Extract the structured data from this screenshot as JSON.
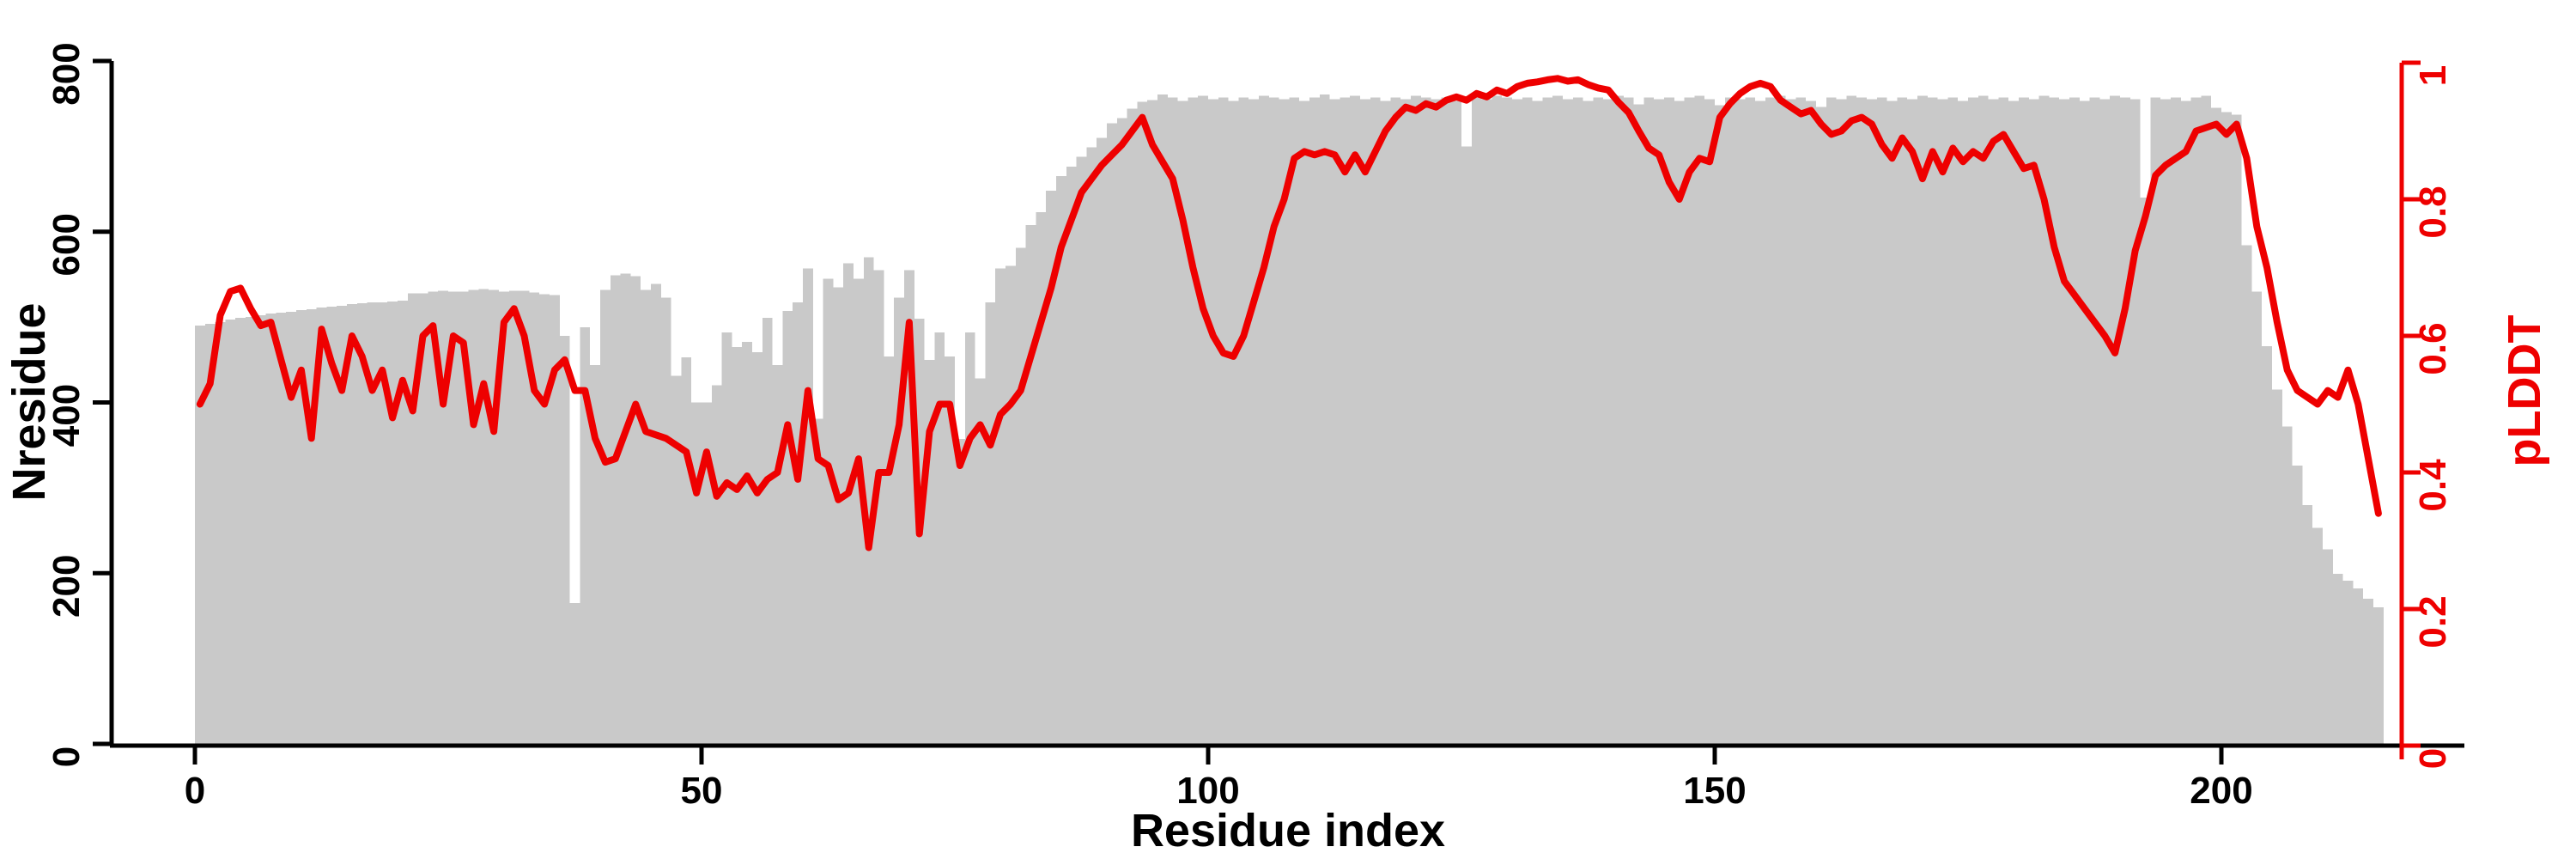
{
  "chart_data": {
    "type": "bar",
    "subtype": "dual-axis-bar-and-line",
    "title": "",
    "xlabel": "Residue index",
    "ylabel_left": "Nresidue",
    "ylabel_right": "pLDDT",
    "x_start": 0,
    "x_step": 1,
    "xlim": [
      0,
      216
    ],
    "ylim_left": [
      0,
      800
    ],
    "ylim_right": [
      0,
      1
    ],
    "grid": false,
    "legend": "none",
    "x_ticks": [
      {
        "v": 0,
        "label": "0"
      },
      {
        "v": 50,
        "label": "50"
      },
      {
        "v": 100,
        "label": "100"
      },
      {
        "v": 150,
        "label": "150"
      },
      {
        "v": 200,
        "label": "200"
      }
    ],
    "y_ticks_left": [
      {
        "v": 0,
        "label": "0"
      },
      {
        "v": 200,
        "label": "200"
      },
      {
        "v": 400,
        "label": "400"
      },
      {
        "v": 600,
        "label": "600"
      },
      {
        "v": 800,
        "label": "800"
      }
    ],
    "y_ticks_right": [
      {
        "v": 0,
        "label": "0"
      },
      {
        "v": 0.2,
        "label": "0.2"
      },
      {
        "v": 0.4,
        "label": "0.4"
      },
      {
        "v": 0.6,
        "label": "0.6"
      },
      {
        "v": 0.8,
        "label": "0.8"
      },
      {
        "v": 1,
        "label": "1"
      }
    ],
    "series": [
      {
        "name": "Nresidue",
        "type": "bar",
        "axis": "left",
        "color": "#c9c9c9",
        "values": [
          490,
          492,
          494,
          497,
          499,
          500,
          502,
          504,
          505,
          506,
          508,
          509,
          511,
          512,
          513,
          515,
          516,
          517,
          517,
          518,
          519,
          528,
          528,
          530,
          531,
          530,
          530,
          532,
          533,
          532,
          530,
          531,
          531,
          529,
          527,
          526,
          478,
          165,
          488,
          444,
          532,
          549,
          551,
          548,
          532,
          539,
          523,
          431,
          453,
          400,
          400,
          420,
          482,
          465,
          471,
          459,
          499,
          444,
          507,
          517,
          557,
          381,
          545,
          535,
          563,
          545,
          570,
          555,
          454,
          523,
          555,
          498,
          450,
          482,
          454,
          357,
          482,
          428,
          517,
          557,
          560,
          581,
          608,
          623,
          648,
          665,
          676,
          688,
          699,
          710,
          727,
          733,
          744,
          752,
          754,
          761,
          757,
          753,
          757,
          759,
          755,
          757,
          753,
          757,
          755,
          759,
          757,
          755,
          757,
          753,
          757,
          761,
          755,
          757,
          759,
          755,
          757,
          753,
          757,
          755,
          759,
          757,
          755,
          757,
          753,
          700,
          757,
          755,
          759,
          757,
          755,
          757,
          753,
          757,
          759,
          755,
          757,
          753,
          757,
          755,
          759,
          757,
          749,
          757,
          755,
          757,
          753,
          757,
          759,
          755,
          748,
          757,
          755,
          757,
          753,
          757,
          759,
          755,
          757,
          753,
          746,
          757,
          755,
          759,
          757,
          755,
          757,
          753,
          757,
          755,
          759,
          757,
          755,
          757,
          753,
          757,
          759,
          755,
          757,
          753,
          757,
          755,
          759,
          757,
          755,
          757,
          753,
          757,
          755,
          759,
          757,
          755,
          640,
          757,
          755,
          757,
          753,
          757,
          759,
          745,
          740,
          737,
          584,
          530,
          466,
          415,
          372,
          326,
          280,
          253,
          228,
          199,
          191,
          182,
          170,
          160
        ]
      },
      {
        "name": "pLDDT",
        "type": "line",
        "axis": "right",
        "color": "#ee0000",
        "values": [
          0.5,
          0.53,
          0.63,
          0.665,
          0.67,
          0.64,
          0.615,
          0.62,
          0.565,
          0.51,
          0.55,
          0.45,
          0.61,
          0.56,
          0.52,
          0.6,
          0.57,
          0.52,
          0.55,
          0.48,
          0.535,
          0.49,
          0.6,
          0.615,
          0.5,
          0.6,
          0.59,
          0.47,
          0.53,
          0.46,
          0.62,
          0.64,
          0.6,
          0.52,
          0.5,
          0.55,
          0.565,
          0.52,
          0.52,
          0.45,
          0.415,
          0.42,
          0.46,
          0.5,
          0.46,
          0.455,
          0.45,
          0.44,
          0.43,
          0.37,
          0.43,
          0.365,
          0.385,
          0.375,
          0.395,
          0.37,
          0.39,
          0.4,
          0.47,
          0.39,
          0.52,
          0.42,
          0.41,
          0.36,
          0.37,
          0.42,
          0.29,
          0.4,
          0.4,
          0.47,
          0.62,
          0.31,
          0.46,
          0.5,
          0.5,
          0.41,
          0.45,
          0.47,
          0.44,
          0.485,
          0.5,
          0.52,
          0.57,
          0.62,
          0.67,
          0.73,
          0.77,
          0.81,
          0.83,
          0.85,
          0.865,
          0.88,
          0.9,
          0.92,
          0.88,
          0.855,
          0.83,
          0.77,
          0.7,
          0.64,
          0.6,
          0.575,
          0.57,
          0.6,
          0.65,
          0.7,
          0.76,
          0.8,
          0.86,
          0.87,
          0.865,
          0.87,
          0.865,
          0.84,
          0.865,
          0.84,
          0.87,
          0.9,
          0.92,
          0.935,
          0.93,
          0.94,
          0.935,
          0.945,
          0.95,
          0.945,
          0.955,
          0.95,
          0.96,
          0.955,
          0.965,
          0.97,
          0.972,
          0.975,
          0.977,
          0.973,
          0.975,
          0.968,
          0.963,
          0.96,
          0.942,
          0.927,
          0.9,
          0.875,
          0.865,
          0.825,
          0.8,
          0.84,
          0.86,
          0.855,
          0.92,
          0.94,
          0.955,
          0.965,
          0.97,
          0.965,
          0.945,
          0.935,
          0.925,
          0.93,
          0.91,
          0.895,
          0.9,
          0.915,
          0.92,
          0.91,
          0.88,
          0.86,
          0.89,
          0.87,
          0.83,
          0.87,
          0.84,
          0.875,
          0.855,
          0.87,
          0.86,
          0.885,
          0.895,
          0.87,
          0.845,
          0.85,
          0.8,
          0.73,
          0.68,
          0.66,
          0.64,
          0.62,
          0.6,
          0.575,
          0.64,
          0.725,
          0.775,
          0.835,
          0.85,
          0.86,
          0.87,
          0.9,
          0.905,
          0.91,
          0.895,
          0.91,
          0.86,
          0.76,
          0.7,
          0.62,
          0.55,
          0.52,
          0.51,
          0.5,
          0.52,
          0.51,
          0.55,
          0.5,
          0.42,
          0.34
        ]
      }
    ]
  },
  "colors": {
    "background": "#ffffff",
    "bar": "#c9c9c9",
    "line": "#ee0000",
    "axis_left": "#000000",
    "axis_bottom": "#000000",
    "axis_right": "#ee0000",
    "tick_label_left": "#000000",
    "tick_label_bottom": "#000000",
    "tick_label_right": "#ee0000"
  },
  "labels": {
    "xlabel": "Residue index",
    "ylabel_left": "Nresidue",
    "ylabel_right": "pLDDT"
  }
}
